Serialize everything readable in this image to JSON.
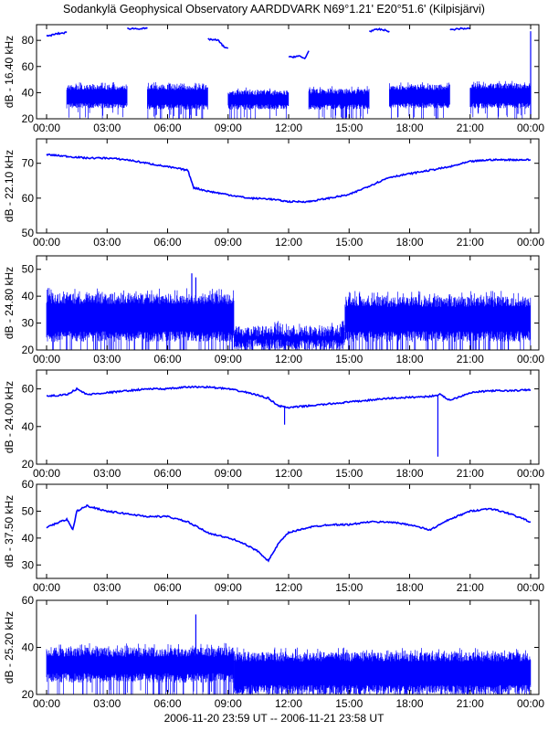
{
  "chart_data": {
    "type": "line",
    "title": "Sodankylä Geophysical Observatory AARDDVARK N69°1.21' E20°51.6' (Kilpisjärvi)",
    "xlabel": "2006-11-20 23:59 UT -- 2006-11-21 23:58 UT",
    "xticks": [
      "00:00",
      "03:00",
      "06:00",
      "09:00",
      "12:00",
      "15:00",
      "18:00",
      "21:00",
      "00:00"
    ],
    "xlim_hours": [
      0,
      24
    ],
    "color": "#0000ff",
    "panels": [
      {
        "ylabel": "dB - 16.40 kHz",
        "ylim": [
          20,
          92
        ],
        "yticks": [
          20,
          40,
          60,
          80
        ],
        "lines": [
          [
            [
              0,
              83
            ],
            [
              0.5,
              85
            ],
            [
              1,
              86
            ]
          ],
          [
            [
              4,
              89
            ],
            [
              5,
              89
            ]
          ],
          [
            [
              8,
              81
            ],
            [
              8.5,
              80
            ],
            [
              8.8,
              75
            ],
            [
              9,
              74
            ]
          ],
          [
            [
              12,
              67
            ],
            [
              12.5,
              68
            ],
            [
              12.8,
              66
            ],
            [
              13,
              72
            ]
          ],
          [
            [
              16,
              87
            ],
            [
              16.5,
              88.5
            ],
            [
              17,
              87
            ]
          ],
          [
            [
              20,
              88
            ],
            [
              20.5,
              89
            ],
            [
              21,
              89
            ]
          ]
        ],
        "bands": [
          [
            1,
            4,
            28,
            46
          ],
          [
            5,
            8,
            27,
            46
          ],
          [
            9,
            12,
            27,
            42
          ],
          [
            13,
            16,
            27,
            43
          ],
          [
            17,
            20,
            28,
            46
          ],
          [
            21,
            24,
            28,
            47
          ]
        ],
        "spikes": [
          [
            24,
            20,
            87
          ]
        ]
      },
      {
        "ylabel": "dB - 22.10 kHz",
        "ylim": [
          50,
          77
        ],
        "yticks": [
          50,
          60,
          70
        ],
        "lines": [
          [
            [
              0,
              72.5
            ],
            [
              1,
              72
            ],
            [
              2,
              71.5
            ],
            [
              3,
              71.5
            ],
            [
              4,
              71
            ],
            [
              5,
              70
            ],
            [
              6,
              69
            ],
            [
              7,
              68
            ],
            [
              7.3,
              63
            ],
            [
              8,
              62
            ],
            [
              9,
              61
            ],
            [
              10,
              60
            ],
            [
              11,
              59.8
            ],
            [
              12,
              59
            ],
            [
              13,
              59
            ],
            [
              14,
              60
            ],
            [
              15,
              61
            ],
            [
              16,
              63.5
            ],
            [
              17,
              66
            ],
            [
              18,
              67
            ],
            [
              19,
              68
            ],
            [
              20,
              69
            ],
            [
              21,
              70.5
            ],
            [
              22,
              71
            ],
            [
              23,
              71
            ],
            [
              24,
              71
            ]
          ]
        ],
        "bands": [],
        "spikes": []
      },
      {
        "ylabel": "dB - 24.80 kHz",
        "ylim": [
          20,
          55
        ],
        "yticks": [
          20,
          30,
          40,
          50
        ],
        "lines": [],
        "bands": [
          [
            0,
            9.3,
            23,
            41
          ],
          [
            9.3,
            14.8,
            20,
            29
          ],
          [
            14.8,
            24,
            23,
            40
          ]
        ],
        "spikes": [
          [
            7.2,
            30,
            48.5
          ],
          [
            7.4,
            32,
            47
          ]
        ]
      },
      {
        "ylabel": "dB - 24.00 kHz",
        "ylim": [
          20,
          70
        ],
        "yticks": [
          20,
          40,
          60
        ],
        "lines": [
          [
            [
              0,
              56
            ],
            [
              1,
              57
            ],
            [
              1.5,
              60
            ],
            [
              2,
              57
            ],
            [
              3,
              58
            ],
            [
              4,
              59
            ],
            [
              5,
              60
            ],
            [
              6,
              60
            ],
            [
              7,
              61
            ],
            [
              8,
              61
            ],
            [
              9,
              60
            ],
            [
              10,
              58
            ],
            [
              11,
              55
            ],
            [
              11.5,
              51
            ],
            [
              12,
              50
            ],
            [
              13,
              51
            ],
            [
              14,
              52
            ],
            [
              15,
              53
            ],
            [
              16,
              54
            ],
            [
              17,
              55
            ],
            [
              18,
              55.5
            ],
            [
              19,
              56
            ],
            [
              19.5,
              57
            ],
            [
              20,
              54
            ],
            [
              21,
              58
            ],
            [
              22,
              59
            ],
            [
              23,
              59
            ],
            [
              24,
              59.5
            ]
          ]
        ],
        "bands": [],
        "spikes": [
          [
            19.4,
            24,
            57
          ],
          [
            11.8,
            41,
            51
          ]
        ]
      },
      {
        "ylabel": "dB - 37.50 kHz",
        "ylim": [
          25,
          60
        ],
        "yticks": [
          30,
          40,
          50,
          60
        ],
        "lines": [
          [
            [
              0,
              44
            ],
            [
              1,
              47
            ],
            [
              1.3,
              43
            ],
            [
              1.5,
              50
            ],
            [
              2,
              52
            ],
            [
              3,
              50
            ],
            [
              4,
              49
            ],
            [
              5,
              48
            ],
            [
              6,
              48
            ],
            [
              7,
              46
            ],
            [
              8,
              42
            ],
            [
              9,
              40
            ],
            [
              9.5,
              39
            ],
            [
              10,
              37
            ],
            [
              10.5,
              35
            ],
            [
              11,
              31.5
            ],
            [
              11.5,
              38
            ],
            [
              12,
              42
            ],
            [
              13,
              44
            ],
            [
              14,
              45
            ],
            [
              15,
              45
            ],
            [
              16,
              46
            ],
            [
              17,
              46
            ],
            [
              18,
              45
            ],
            [
              19,
              43
            ],
            [
              20,
              47
            ],
            [
              21,
              50
            ],
            [
              22,
              51
            ],
            [
              23,
              49
            ],
            [
              24,
              46
            ]
          ]
        ],
        "bands": [],
        "spikes": []
      },
      {
        "ylabel": "dB - 25.20 kHz",
        "ylim": [
          20,
          60
        ],
        "yticks": [
          20,
          40,
          60
        ],
        "lines": [],
        "bands": [
          [
            0,
            9.3,
            25,
            40
          ],
          [
            9.3,
            24,
            20,
            38
          ]
        ],
        "spikes": [
          [
            7.4,
            36,
            54
          ]
        ]
      }
    ]
  }
}
